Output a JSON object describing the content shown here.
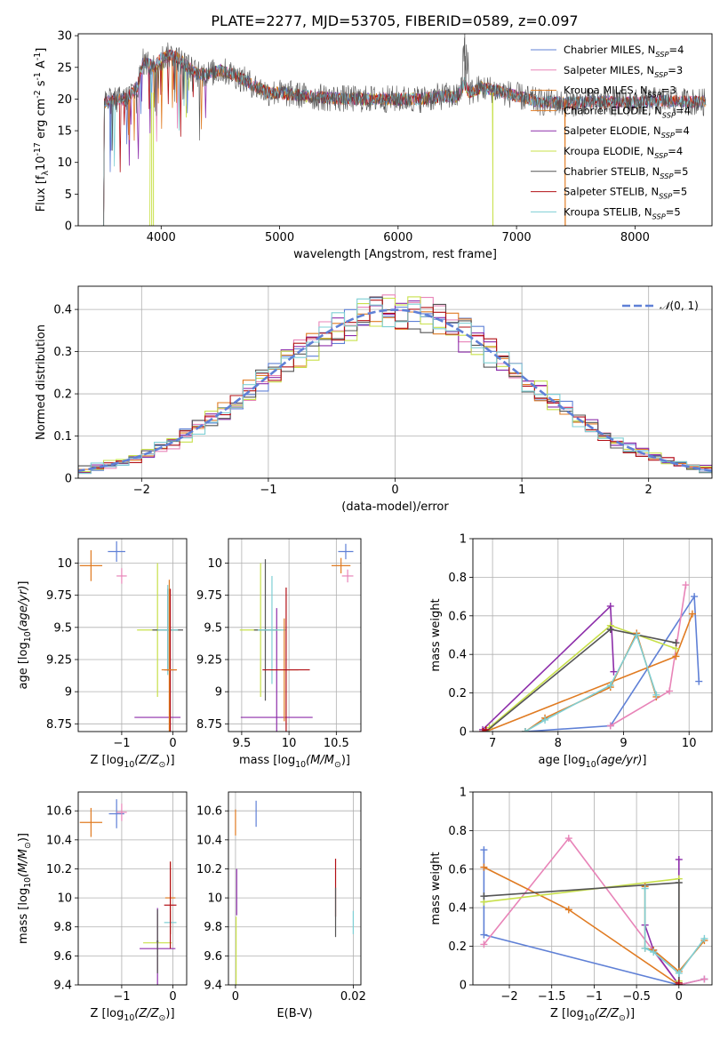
{
  "figure": {
    "title": "PLATE=2277, MJD=53705, FIBERID=0589, z=0.097"
  },
  "colors": {
    "Chabrier MILES": "#5f80d6",
    "Salpeter MILES": "#e884b8",
    "Kroupa MILES": "#e07b22",
    "Chabrier ELODIE": "#e07b22",
    "Salpeter ELODIE": "#8d2eaa",
    "Kroupa ELODIE": "#c8e04a",
    "Chabrier STELIB": "#555555",
    "Salpeter STELIB": "#b21016",
    "Kroupa STELIB": "#7ecfd4"
  },
  "chart_data": [
    {
      "id": "spectrum",
      "type": "line",
      "xlabel": "wavelength [Angstrom, rest frame]",
      "ylabel": "Flux [f_λ10^-17 erg cm^-2 s^-1 A^-1]",
      "xlim": [
        3300,
        8650
      ],
      "ylim": [
        0,
        30.3
      ],
      "xticks": [
        4000,
        5000,
        6000,
        7000,
        8000
      ],
      "yticks": [
        0,
        5,
        10,
        15,
        20,
        25,
        30
      ],
      "grid": false,
      "legend": "upper-right",
      "legend_entries": [
        {
          "name": "Chabrier MILES, N_SSP=4",
          "color": "Chabrier MILES"
        },
        {
          "name": "Salpeter MILES, N_SSP=3",
          "color": "Salpeter MILES"
        },
        {
          "name": "Kroupa MILES, N_SSP=3",
          "color": "Kroupa MILES"
        },
        {
          "name": "Chabrier ELODIE, N_SSP=4",
          "color": "Chabrier ELODIE"
        },
        {
          "name": "Salpeter ELODIE, N_SSP=4",
          "color": "Salpeter ELODIE"
        },
        {
          "name": "Kroupa ELODIE, N_SSP=4",
          "color": "Kroupa ELODIE"
        },
        {
          "name": "Chabrier STELIB, N_SSP=5",
          "color": "Chabrier STELIB"
        },
        {
          "name": "Salpeter STELIB, N_SSP=5",
          "color": "Salpeter STELIB"
        },
        {
          "name": "Kroupa STELIB, N_SSP=5",
          "color": "Kroupa STELIB"
        }
      ],
      "data_envelope": {
        "x": [
          3520,
          3600,
          3700,
          3800,
          3850,
          3900,
          3950,
          4000,
          4100,
          4200,
          4300,
          4400,
          4500,
          4600,
          4700,
          4800,
          4900,
          5000,
          5200,
          5400,
          5600,
          5800,
          6000,
          6200,
          6400,
          6500,
          6560,
          6600,
          6700,
          6800,
          6900,
          7000,
          7100,
          7200,
          7300,
          7400,
          7600,
          7800,
          8000,
          8200,
          8400,
          8600
        ],
        "y": [
          19.5,
          19.8,
          20.0,
          22.0,
          26.0,
          25.5,
          25.0,
          26.5,
          27.0,
          25.5,
          24.0,
          24.0,
          24.5,
          24.0,
          23.0,
          22.0,
          21.0,
          21.0,
          20.5,
          20.2,
          20.0,
          20.0,
          20.0,
          20.0,
          20.5,
          20.3,
          22.5,
          21.0,
          21.8,
          21.5,
          21.0,
          20.5,
          20.0,
          19.5,
          19.5,
          19.3,
          19.5,
          19.5,
          19.4,
          19.8,
          19.6,
          19.5
        ]
      },
      "model_cutoffs": [
        {
          "model": "Chabrier ELODIE",
          "wavelength_range": [
            3520,
            7410
          ]
        },
        {
          "model": "Kroupa ELODIE",
          "wavelength_range": [
            3910,
            6800
          ]
        }
      ]
    },
    {
      "id": "residuals",
      "type": "step",
      "xlabel": "(data-model)/error",
      "ylabel": "Normed distribution",
      "xlim": [
        -2.5,
        2.5
      ],
      "ylim": [
        0,
        0.455
      ],
      "xticks": [
        -2,
        -1,
        0,
        1,
        2
      ],
      "yticks": [
        0.0,
        0.1,
        0.2,
        0.3,
        0.4
      ],
      "grid": true,
      "legend": "upper-right",
      "legend_entries": [
        {
          "name": "𝒩(0, 1)",
          "style": "dashed",
          "color": "#5f80d6"
        }
      ],
      "bin_width": 0.1,
      "reference": "standard normal N(0,1)"
    },
    {
      "id": "age_vs_Z",
      "type": "errorbar",
      "xlabel": "Z [log10(Z/Z⊙)]",
      "ylabel": "age [log10(age/yr)]",
      "xlim": [
        -1.85,
        0.27
      ],
      "ylim": [
        8.69,
        10.19
      ],
      "xticks": [
        -1,
        0
      ],
      "yticks": [
        8.75,
        9.0,
        9.25,
        9.5,
        9.75,
        10.0
      ],
      "grid": true,
      "points": [
        {
          "m": "Kroupa MILES",
          "x": -1.6,
          "xe": 0.22,
          "y": 9.98,
          "ye": 0.12
        },
        {
          "m": "Chabrier MILES",
          "x": -1.1,
          "xe": 0.17,
          "y": 10.09,
          "ye": 0.08
        },
        {
          "m": "Salpeter MILES",
          "x": -1.0,
          "xe": 0.1,
          "y": 9.9,
          "ye": 0.06
        },
        {
          "m": "Salpeter ELODIE",
          "x": -0.3,
          "xe": 0.45,
          "y": 8.8,
          "ye": 0.0
        },
        {
          "m": "Kroupa ELODIE",
          "x": -0.3,
          "xe": 0.4,
          "y": 9.48,
          "ye": 0.52
        },
        {
          "m": "Chabrier STELIB",
          "x": -0.1,
          "xe": 0.3,
          "y": 9.48,
          "ye": 0.32
        },
        {
          "m": "Kroupa STELIB",
          "x": -0.1,
          "xe": 0.2,
          "y": 9.48,
          "ye": 0.35
        },
        {
          "m": "Salpeter STELIB",
          "x": -0.05,
          "xe": 0.12,
          "y": 9.17,
          "ye": 0.63
        },
        {
          "m": "Chabrier ELODIE",
          "x": -0.07,
          "xe": 0.15,
          "y": 9.17,
          "ye": 0.7
        }
      ]
    },
    {
      "id": "age_vs_mass",
      "type": "errorbar",
      "xlabel": "mass [log10(M/M⊙)]",
      "ylabel": "",
      "xlim": [
        9.36,
        10.76
      ],
      "ylim": [
        8.69,
        10.19
      ],
      "xticks": [
        9.5,
        10.0,
        10.5
      ],
      "yticks": [
        8.75,
        9.0,
        9.25,
        9.5,
        9.75,
        10.0
      ],
      "grid": true,
      "points": [
        {
          "m": "Kroupa MILES",
          "x": 10.55,
          "xe": 0.1,
          "y": 9.98,
          "ye": 0.06
        },
        {
          "m": "Chabrier MILES",
          "x": 10.6,
          "xe": 0.08,
          "y": 10.09,
          "ye": 0.06
        },
        {
          "m": "Salpeter MILES",
          "x": 10.62,
          "xe": 0.06,
          "y": 9.9,
          "ye": 0.05
        },
        {
          "m": "Salpeter ELODIE",
          "x": 9.87,
          "xe": 0.38,
          "y": 8.8,
          "ye": 0.85
        },
        {
          "m": "Kroupa ELODIE",
          "x": 9.7,
          "xe": 0.22,
          "y": 9.48,
          "ye": 0.52
        },
        {
          "m": "Chabrier STELIB",
          "x": 9.75,
          "xe": 0.12,
          "y": 9.48,
          "ye": 0.55
        },
        {
          "m": "Kroupa STELIB",
          "x": 9.82,
          "xe": 0.15,
          "y": 9.48,
          "ye": 0.42
        },
        {
          "m": "Chabrier ELODIE",
          "x": 9.95,
          "xe": 0.15,
          "y": 9.17,
          "ye": 0.4
        },
        {
          "m": "Salpeter STELIB",
          "x": 9.97,
          "xe": 0.25,
          "y": 9.17,
          "ye": 0.64
        }
      ]
    },
    {
      "id": "weight_vs_age",
      "type": "line",
      "xlabel": "age [log10(age/yr)]",
      "ylabel": "mass weight",
      "xlim": [
        6.7,
        10.35
      ],
      "ylim": [
        0,
        1.0
      ],
      "xticks": [
        7,
        8,
        9,
        10
      ],
      "yticks": [
        0.0,
        0.2,
        0.4,
        0.6,
        0.8,
        1.0
      ],
      "grid": true,
      "series": [
        {
          "m": "Chabrier MILES",
          "x": [
            7.5,
            8.8,
            10.08,
            10.15
          ],
          "y": [
            0.0,
            0.03,
            0.7,
            0.26
          ]
        },
        {
          "m": "Salpeter MILES",
          "x": [
            8.8,
            9.7,
            9.95
          ],
          "y": [
            0.03,
            0.21,
            0.76
          ]
        },
        {
          "m": "Kroupa MILES",
          "x": [
            6.9,
            9.8,
            10.05
          ],
          "y": [
            0.0,
            0.39,
            0.61
          ]
        },
        {
          "m": "Salpeter ELODIE",
          "x": [
            6.85,
            8.8,
            8.85
          ],
          "y": [
            0.01,
            0.65,
            0.31
          ]
        },
        {
          "m": "Kroupa ELODIE",
          "x": [
            6.95,
            8.8,
            9.8
          ],
          "y": [
            0.02,
            0.55,
            0.43
          ]
        },
        {
          "m": "Chabrier STELIB",
          "x": [
            6.9,
            8.8,
            9.8
          ],
          "y": [
            0.0,
            0.53,
            0.46
          ]
        },
        {
          "m": "Chabrier ELODIE",
          "x": [
            7.5,
            7.8,
            8.8,
            9.2,
            9.5
          ],
          "y": [
            0.0,
            0.07,
            0.23,
            0.51,
            0.18
          ]
        },
        {
          "m": "Kroupa STELIB",
          "x": [
            7.5,
            7.8,
            8.8,
            9.2,
            9.5
          ],
          "y": [
            0.0,
            0.06,
            0.24,
            0.5,
            0.19
          ]
        },
        {
          "m": "Salpeter STELIB",
          "x": [
            6.85,
            6.9
          ],
          "y": [
            0.0,
            0.01
          ]
        }
      ]
    },
    {
      "id": "mass_vs_Z",
      "type": "errorbar",
      "xlabel": "Z [log10(Z/Z⊙)]",
      "ylabel": "mass [log10(M/M⊙)]",
      "xlim": [
        -1.85,
        0.27
      ],
      "ylim": [
        9.4,
        10.73
      ],
      "xticks": [
        -1,
        0
      ],
      "yticks": [
        9.4,
        9.6,
        9.8,
        10.0,
        10.2,
        10.4,
        10.6
      ],
      "grid": true,
      "points": [
        {
          "m": "Kroupa MILES",
          "x": -1.6,
          "xe": 0.22,
          "y": 10.52,
          "ye": 0.1
        },
        {
          "m": "Chabrier MILES",
          "x": -1.1,
          "xe": 0.15,
          "y": 10.58,
          "ye": 0.1
        },
        {
          "m": "Salpeter MILES",
          "x": -1.0,
          "xe": 0.1,
          "y": 10.59,
          "ye": 0.06
        },
        {
          "m": "Kroupa ELODIE",
          "x": -0.3,
          "xe": 0.28,
          "y": 9.69,
          "ye": 0.2
        },
        {
          "m": "Salpeter ELODIE",
          "x": -0.3,
          "xe": 0.35,
          "y": 9.65,
          "ye": 0.28
        },
        {
          "m": "Chabrier STELIB",
          "x": -0.3,
          "xe": 0.02,
          "y": 9.7,
          "ye": 0.22
        },
        {
          "m": "Kroupa STELIB",
          "x": -0.05,
          "xe": 0.12,
          "y": 9.83,
          "ye": 0.08
        },
        {
          "m": "Chabrier ELODIE",
          "x": -0.05,
          "xe": 0.1,
          "y": 10.0,
          "ye": 0.25
        },
        {
          "m": "Salpeter STELIB",
          "x": -0.05,
          "xe": 0.12,
          "y": 9.95,
          "ye": 0.3
        }
      ]
    },
    {
      "id": "mass_vs_ebv",
      "type": "errorbar",
      "xlabel": "E(B-V)",
      "ylabel": "",
      "xlim": [
        -0.0012,
        0.0213
      ],
      "ylim": [
        9.4,
        10.73
      ],
      "xticks": [
        0.0,
        0.02
      ],
      "yticks": [
        9.4,
        9.6,
        9.8,
        10.0,
        10.2,
        10.4,
        10.6
      ],
      "grid": true,
      "points": [
        {
          "m": "Chabrier MILES",
          "x": 0.0035,
          "xe": 0,
          "y": 10.58,
          "ye": 0.09
        },
        {
          "m": "Kroupa MILES",
          "x": 0.0,
          "xe": 0,
          "y": 10.52,
          "ye": 0.09
        },
        {
          "m": "Salpeter ELODIE",
          "x": 0.0002,
          "xe": 0,
          "y": 10.04,
          "ye": 0.16
        },
        {
          "m": "Kroupa ELODIE",
          "x": 0.0001,
          "xe": 0,
          "y": 9.62,
          "ye": 0.25
        },
        {
          "m": "Salpeter STELIB",
          "x": 0.017,
          "xe": 0,
          "y": 10.07,
          "ye": 0.2
        },
        {
          "m": "Chabrier STELIB",
          "x": 0.017,
          "xe": 0,
          "y": 9.9,
          "ye": 0.17
        },
        {
          "m": "Kroupa STELIB",
          "x": 0.02,
          "xe": 0,
          "y": 9.83,
          "ye": 0.08
        }
      ]
    },
    {
      "id": "weight_vs_Z",
      "type": "line",
      "xlabel": "Z [log10(Z/Z⊙)]",
      "ylabel": "mass weight",
      "xlim": [
        -2.43,
        0.39
      ],
      "ylim": [
        0,
        1.0
      ],
      "xticks": [
        -2.0,
        -1.5,
        -1.0,
        -0.5,
        0.0
      ],
      "yticks": [
        0.0,
        0.2,
        0.4,
        0.6,
        0.8,
        1.0
      ],
      "grid": true,
      "series": [
        {
          "m": "Chabrier MILES",
          "x": [
            -2.3,
            -2.3,
            0.0,
            0.0,
            0.3
          ],
          "y": [
            0.7,
            0.26,
            0.0,
            0.0,
            0.03
          ]
        },
        {
          "m": "Salpeter MILES",
          "x": [
            -2.3,
            -1.3,
            0.0,
            0.3
          ],
          "y": [
            0.21,
            0.76,
            0.0,
            0.03
          ]
        },
        {
          "m": "Kroupa MILES",
          "x": [
            -2.3,
            -1.3,
            0.0
          ],
          "y": [
            0.61,
            0.39,
            0.0
          ]
        },
        {
          "m": "Salpeter ELODIE",
          "x": [
            -0.4,
            -0.3,
            0.0,
            0.0
          ],
          "y": [
            0.31,
            0.18,
            0.0,
            0.65
          ]
        },
        {
          "m": "Kroupa ELODIE",
          "x": [
            -2.3,
            0.0,
            0.0
          ],
          "y": [
            0.43,
            0.55,
            0.02
          ]
        },
        {
          "m": "Chabrier STELIB",
          "x": [
            -2.3,
            0.0,
            0.0
          ],
          "y": [
            0.46,
            0.53,
            0.0
          ]
        },
        {
          "m": "Chabrier ELODIE",
          "x": [
            -0.4,
            -0.4,
            -0.3,
            0.0,
            0.3
          ],
          "y": [
            0.51,
            0.19,
            0.18,
            0.07,
            0.23
          ]
        },
        {
          "m": "Kroupa STELIB",
          "x": [
            -0.4,
            -0.4,
            -0.3,
            0.0,
            0.3
          ],
          "y": [
            0.5,
            0.19,
            0.17,
            0.06,
            0.24
          ]
        },
        {
          "m": "Salpeter STELIB",
          "x": [
            0.0,
            0.0
          ],
          "y": [
            0.0,
            0.01
          ]
        }
      ]
    }
  ]
}
